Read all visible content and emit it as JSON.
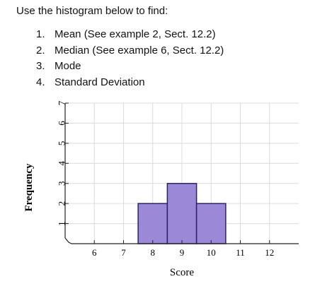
{
  "instructions": {
    "heading": "Use the histogram below to find:",
    "items": [
      {
        "number": "1.",
        "text": "Mean (See example 2, Sect. 12.2)"
      },
      {
        "number": "2.",
        "text": "Median (See example 6, Sect. 12.2)"
      },
      {
        "number": "3.",
        "text": "Mode"
      },
      {
        "number": "4.",
        "text": "Standard Deviation"
      }
    ]
  },
  "chart_data": {
    "type": "bar",
    "title": "",
    "xlabel": "Score",
    "ylabel": "Frequency",
    "xlim": [
      5,
      13
    ],
    "ylim": [
      0,
      7
    ],
    "x_ticks": [
      "6",
      "7",
      "8",
      "9",
      "10",
      "11",
      "12"
    ],
    "y_ticks": [
      "1",
      "2",
      "3",
      "4",
      "5",
      "6",
      "7"
    ],
    "grid": true,
    "bars": [
      {
        "score": 8,
        "frequency": 2
      },
      {
        "score": 9,
        "frequency": 3
      },
      {
        "score": 10,
        "frequency": 2
      }
    ],
    "colors": {
      "bar_fill": "#9b88d6",
      "bar_stroke": "#2a2466",
      "grid": "#dcdcdc"
    }
  }
}
